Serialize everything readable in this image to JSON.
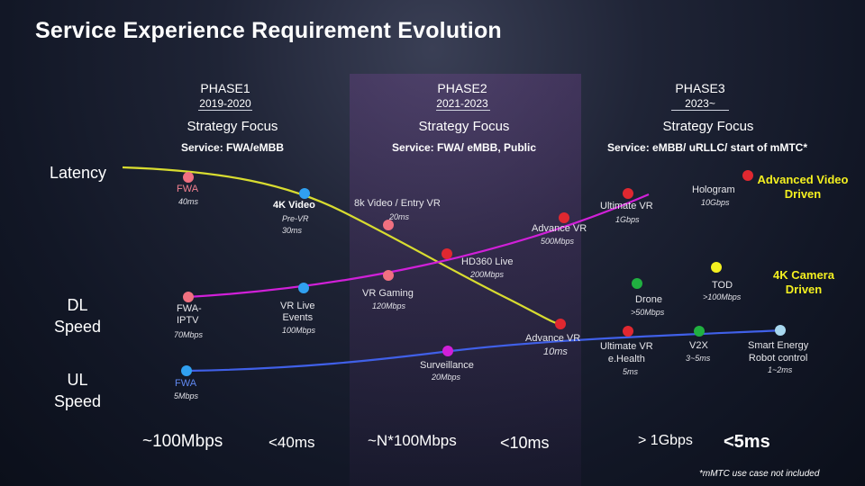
{
  "title": "Service Experience Requirement Evolution",
  "phases": [
    {
      "name": "PHASE1",
      "years": "2019-2020",
      "focus": "Strategy Focus",
      "service": "Service: FWA/eMBB"
    },
    {
      "name": "PHASE2",
      "years": "2021-2023",
      "focus": "Strategy Focus",
      "service": "Service: FWA/ eMBB, Public"
    },
    {
      "name": "PHASE3",
      "years": "2023~",
      "focus": "Strategy Focus",
      "service": "Service: eMBB/ uRLLC/ start of mMTC*"
    }
  ],
  "rows": {
    "latency": "Latency",
    "dl": "DL\nSpeed",
    "ul": "UL\nSpeed"
  },
  "colors": {
    "latency_line": "#d8dc30",
    "dl_line": "#d020d8",
    "ul_line": "#4060e8",
    "pink": "#f07080",
    "blue": "#30a0f0",
    "red": "#e02830",
    "green": "#20b040",
    "yellow": "#f4f020",
    "lightblue": "#a8d8f0",
    "band": "#7a4a96"
  },
  "nodes": {
    "fwa_lat": {
      "name": "FWA",
      "value": "40ms"
    },
    "video4k": {
      "name": "4K Video",
      "value": "Pre-VR\n30ms"
    },
    "video8k": {
      "name": "8k Video / Entry VR",
      "value": "20ms"
    },
    "advance_vr_lat": {
      "name": "Advance VR",
      "value": "500Mbps"
    },
    "ultimate_vr_lat": {
      "name": "Ultimate VR",
      "value": "1Gbps"
    },
    "hologram": {
      "name": "Hologram",
      "value": "10Gbps"
    },
    "hd360": {
      "name": "HD360 Live",
      "value": "200Mbps"
    },
    "vr_gaming": {
      "name": "VR Gaming",
      "value": "120Mbps"
    },
    "fwa_iptv": {
      "name": "FWA-\nIPTV",
      "value": "70Mbps"
    },
    "vr_live": {
      "name": "VR Live\nEvents",
      "value": "100Mbps"
    },
    "drone": {
      "name": "Drone",
      "value": ">50Mbps"
    },
    "tod": {
      "name": "TOD",
      "value": ">100Mbps"
    },
    "advance_vr_ul": {
      "name": "Advance VR",
      "value": "10ms"
    },
    "surveillance": {
      "name": "Surveillance",
      "value": "20Mbps"
    },
    "fwa_ul": {
      "name": "FWA",
      "value": "5Mbps"
    },
    "ultimate_vr_ehealth": {
      "name": "Ultimate VR\ne.Health",
      "value": "5ms"
    },
    "v2x": {
      "name": "V2X",
      "value": "3~5ms"
    },
    "smart_energy": {
      "name": "Smart Energy\nRobot control",
      "value": "1~2ms"
    }
  },
  "highlights": {
    "advanced_video": "Advanced Video\nDriven",
    "camera_4k": "4K Camera\nDriven"
  },
  "summary": [
    {
      "speed": "~100Mbps",
      "latency": "<40ms"
    },
    {
      "speed": "~N*100Mbps",
      "latency": "<10ms"
    },
    {
      "speed": "> 1Gbps",
      "latency": "<5ms"
    }
  ],
  "footnote": "*mMTC use case not included"
}
